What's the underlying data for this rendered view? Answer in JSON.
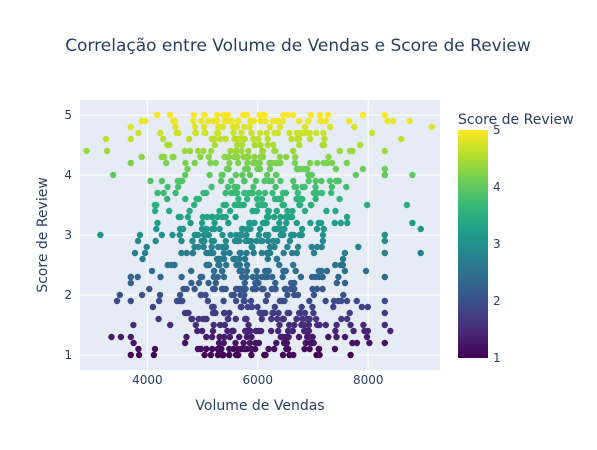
{
  "chart_data": {
    "type": "scatter",
    "title": "Correlação entre Volume de Vendas e Score de Review",
    "xlabel": "Volume de Vendas",
    "ylabel": "Score de Review",
    "xlim": [
      2780,
      9300
    ],
    "ylim": [
      0.75,
      5.25
    ],
    "x_ticks": [
      4000,
      6000,
      8000
    ],
    "x_tick_labels": [
      "4000",
      "6000",
      "8000"
    ],
    "y_ticks": [
      1,
      2,
      3,
      4,
      5
    ],
    "y_tick_labels": [
      "1",
      "2",
      "3",
      "4",
      "5"
    ],
    "grid": true,
    "colorbar": {
      "title": "Score de Review",
      "range": [
        1,
        5
      ],
      "ticks": [
        1,
        2,
        3,
        4,
        5
      ],
      "tick_labels": [
        "1",
        "2",
        "3",
        "4",
        "5"
      ],
      "colorscale": [
        "#440154",
        "#482878",
        "#3e4989",
        "#31688e",
        "#26828e",
        "#1f9e89",
        "#35b779",
        "#6ece58",
        "#b5de2b",
        "#fde725"
      ]
    },
    "generated_series": {
      "count": 900,
      "x_mean": 5950,
      "x_sd": 1000,
      "y_min": 1.0,
      "y_max": 5.0,
      "y_step": 0.1
    },
    "points": [
      {
        "x": 2900,
        "y": 4.4
      },
      {
        "x": 3150,
        "y": 3.0
      },
      {
        "x": 3250,
        "y": 4.6
      },
      {
        "x": 3270,
        "y": 4.4
      },
      {
        "x": 3350,
        "y": 1.3
      },
      {
        "x": 3380,
        "y": 4.0
      },
      {
        "x": 3450,
        "y": 1.9
      },
      {
        "x": 3500,
        "y": 2.0
      },
      {
        "x": 3520,
        "y": 1.3
      },
      {
        "x": 3700,
        "y": 2.3
      },
      {
        "x": 3750,
        "y": 1.2
      },
      {
        "x": 3830,
        "y": 2.9
      },
      {
        "x": 3850,
        "y": 1.0
      },
      {
        "x": 3900,
        "y": 4.9
      },
      {
        "x": 8350,
        "y": 4.9
      },
      {
        "x": 8450,
        "y": 4.9
      },
      {
        "x": 8400,
        "y": 1.4
      },
      {
        "x": 8600,
        "y": 4.6
      },
      {
        "x": 8700,
        "y": 3.5
      },
      {
        "x": 8750,
        "y": 4.9
      },
      {
        "x": 8800,
        "y": 4.0
      },
      {
        "x": 8800,
        "y": 3.2
      },
      {
        "x": 8950,
        "y": 3.1
      },
      {
        "x": 8950,
        "y": 2.7
      },
      {
        "x": 9150,
        "y": 4.8
      }
    ]
  }
}
